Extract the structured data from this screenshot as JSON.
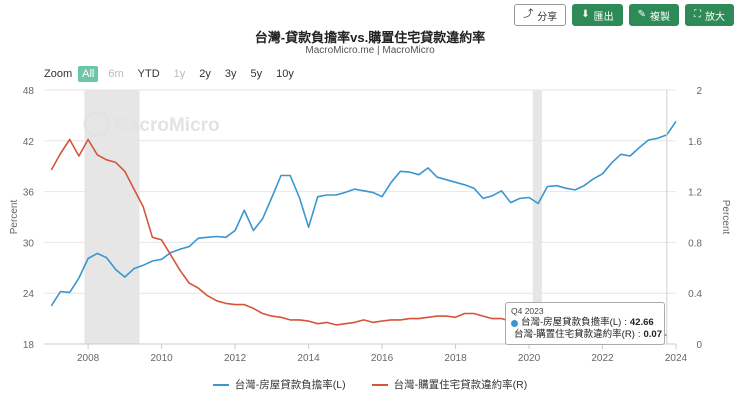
{
  "toolbar": {
    "share_label": "分享",
    "export_label": "匯出",
    "copy_label": "複製",
    "enlarge_label": "放大"
  },
  "title": "台灣-貸款負擔率vs.購置住宅貸款違約率",
  "subtitle": "MacroMicro.me | MacroMicro",
  "watermark": "MacroMicro",
  "zoom": {
    "label": "Zoom",
    "options": [
      "All",
      "6m",
      "YTD",
      "1y",
      "2y",
      "3y",
      "5y",
      "10y"
    ],
    "active": "All",
    "disabled": [
      "6m",
      "1y"
    ]
  },
  "tooltip": {
    "header": "Q4 2023",
    "rows": [
      {
        "name": "台灣-房屋貸款負擔率(L)",
        "value": "42.66",
        "color": "#3a96d0"
      },
      {
        "name": "台灣-購置住宅貸款違約率(R)",
        "value": "0.07",
        "color": "#d4563a"
      }
    ]
  },
  "chart_data": {
    "type": "line",
    "x_ticks": [
      "2008",
      "2010",
      "2012",
      "2014",
      "2016",
      "2018",
      "2020",
      "2022",
      "2024"
    ],
    "y_left": {
      "label": "Percent",
      "ticks": [
        "18",
        "24",
        "30",
        "36",
        "42",
        "48"
      ],
      "range": [
        18,
        48
      ]
    },
    "y_right": {
      "label": "Percent",
      "ticks": [
        "0",
        "0.4",
        "0.8",
        "1.2",
        "1.6",
        "2"
      ],
      "range": [
        0,
        2
      ]
    },
    "x_range": [
      2006.8,
      2024.0
    ],
    "shaded_periods": [
      [
        2007.9,
        2009.4
      ],
      [
        2020.1,
        2020.35
      ]
    ],
    "series": [
      {
        "name": "台灣-房屋貸款負擔率(L)",
        "axis": "left",
        "color": "#3a96d0",
        "points": [
          [
            2007.0,
            22.5
          ],
          [
            2007.25,
            24.2
          ],
          [
            2007.5,
            24.1
          ],
          [
            2007.75,
            25.8
          ],
          [
            2008.0,
            28.1
          ],
          [
            2008.25,
            28.7
          ],
          [
            2008.5,
            28.2
          ],
          [
            2008.75,
            26.8
          ],
          [
            2009.0,
            25.9
          ],
          [
            2009.25,
            26.9
          ],
          [
            2009.5,
            27.3
          ],
          [
            2009.75,
            27.8
          ],
          [
            2010.0,
            28.0
          ],
          [
            2010.25,
            28.8
          ],
          [
            2010.5,
            29.2
          ],
          [
            2010.75,
            29.5
          ],
          [
            2011.0,
            30.5
          ],
          [
            2011.25,
            30.6
          ],
          [
            2011.5,
            30.7
          ],
          [
            2011.75,
            30.6
          ],
          [
            2012.0,
            31.4
          ],
          [
            2012.25,
            33.8
          ],
          [
            2012.5,
            31.4
          ],
          [
            2012.75,
            32.8
          ],
          [
            2013.0,
            35.3
          ],
          [
            2013.25,
            37.9
          ],
          [
            2013.5,
            37.9
          ],
          [
            2013.75,
            35.3
          ],
          [
            2014.0,
            31.8
          ],
          [
            2014.25,
            35.4
          ],
          [
            2014.5,
            35.6
          ],
          [
            2014.75,
            35.6
          ],
          [
            2015.0,
            35.9
          ],
          [
            2015.25,
            36.3
          ],
          [
            2015.5,
            36.1
          ],
          [
            2015.75,
            35.9
          ],
          [
            2016.0,
            35.4
          ],
          [
            2016.25,
            37.1
          ],
          [
            2016.5,
            38.4
          ],
          [
            2016.75,
            38.3
          ],
          [
            2017.0,
            38.0
          ],
          [
            2017.25,
            38.8
          ],
          [
            2017.5,
            37.7
          ],
          [
            2017.75,
            37.4
          ],
          [
            2018.0,
            37.1
          ],
          [
            2018.25,
            36.8
          ],
          [
            2018.5,
            36.4
          ],
          [
            2018.75,
            35.2
          ],
          [
            2019.0,
            35.5
          ],
          [
            2019.25,
            36.1
          ],
          [
            2019.5,
            34.7
          ],
          [
            2019.75,
            35.2
          ],
          [
            2020.0,
            35.3
          ],
          [
            2020.25,
            34.6
          ],
          [
            2020.5,
            36.6
          ],
          [
            2020.75,
            36.7
          ],
          [
            2021.0,
            36.4
          ],
          [
            2021.25,
            36.2
          ],
          [
            2021.5,
            36.7
          ],
          [
            2021.75,
            37.5
          ],
          [
            2022.0,
            38.1
          ],
          [
            2022.25,
            39.4
          ],
          [
            2022.5,
            40.4
          ],
          [
            2022.75,
            40.2
          ],
          [
            2023.0,
            41.2
          ],
          [
            2023.25,
            42.1
          ],
          [
            2023.5,
            42.3
          ],
          [
            2023.75,
            42.7
          ],
          [
            2024.0,
            44.3
          ]
        ]
      },
      {
        "name": "台灣-購置住宅貸款違約率(R)",
        "axis": "right",
        "color": "#d4563a",
        "points": [
          [
            2007.0,
            1.37
          ],
          [
            2007.25,
            1.5
          ],
          [
            2007.5,
            1.61
          ],
          [
            2007.75,
            1.48
          ],
          [
            2008.0,
            1.61
          ],
          [
            2008.25,
            1.49
          ],
          [
            2008.5,
            1.45
          ],
          [
            2008.75,
            1.43
          ],
          [
            2009.0,
            1.36
          ],
          [
            2009.25,
            1.22
          ],
          [
            2009.5,
            1.08
          ],
          [
            2009.75,
            0.84
          ],
          [
            2010.0,
            0.82
          ],
          [
            2010.25,
            0.7
          ],
          [
            2010.5,
            0.58
          ],
          [
            2010.75,
            0.48
          ],
          [
            2011.0,
            0.44
          ],
          [
            2011.25,
            0.38
          ],
          [
            2011.5,
            0.34
          ],
          [
            2011.75,
            0.32
          ],
          [
            2012.0,
            0.31
          ],
          [
            2012.25,
            0.31
          ],
          [
            2012.5,
            0.28
          ],
          [
            2012.75,
            0.24
          ],
          [
            2013.0,
            0.22
          ],
          [
            2013.25,
            0.21
          ],
          [
            2013.5,
            0.19
          ],
          [
            2013.75,
            0.19
          ],
          [
            2014.0,
            0.18
          ],
          [
            2014.25,
            0.16
          ],
          [
            2014.5,
            0.17
          ],
          [
            2014.75,
            0.15
          ],
          [
            2015.0,
            0.16
          ],
          [
            2015.25,
            0.17
          ],
          [
            2015.5,
            0.19
          ],
          [
            2015.75,
            0.17
          ],
          [
            2016.0,
            0.18
          ],
          [
            2016.25,
            0.19
          ],
          [
            2016.5,
            0.19
          ],
          [
            2016.75,
            0.2
          ],
          [
            2017.0,
            0.2
          ],
          [
            2017.25,
            0.21
          ],
          [
            2017.5,
            0.22
          ],
          [
            2017.75,
            0.22
          ],
          [
            2018.0,
            0.21
          ],
          [
            2018.25,
            0.24
          ],
          [
            2018.5,
            0.24
          ],
          [
            2018.75,
            0.22
          ],
          [
            2019.0,
            0.2
          ],
          [
            2019.25,
            0.2
          ],
          [
            2019.5,
            0.18
          ],
          [
            2019.75,
            0.16
          ],
          [
            2020.0,
            0.14
          ],
          [
            2020.25,
            0.12
          ],
          [
            2020.5,
            0.11
          ],
          [
            2020.75,
            0.1
          ],
          [
            2021.0,
            0.09
          ],
          [
            2021.25,
            0.09
          ],
          [
            2021.5,
            0.08
          ],
          [
            2021.75,
            0.08
          ],
          [
            2022.0,
            0.08
          ],
          [
            2022.25,
            0.07
          ],
          [
            2022.5,
            0.07
          ],
          [
            2022.75,
            0.07
          ],
          [
            2023.0,
            0.07
          ],
          [
            2023.25,
            0.07
          ],
          [
            2023.5,
            0.07
          ],
          [
            2023.75,
            0.07
          ]
        ]
      }
    ],
    "legend_position": "bottom",
    "grid": true
  },
  "legend": [
    {
      "name": "台灣-房屋貸款負擔率(L)",
      "color": "#3a96d0"
    },
    {
      "name": "台灣-購置住宅貸款違約率(R)",
      "color": "#d4563a"
    }
  ]
}
